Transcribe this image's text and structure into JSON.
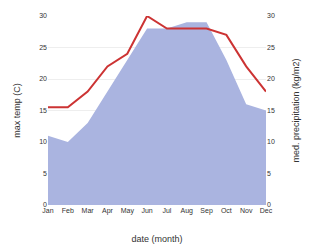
{
  "chart_data": {
    "type": "line",
    "xlabel": "date (month)",
    "ylabel": "max temp (C)",
    "y2label": "med. precipitation (kg/m2)",
    "categories": [
      "Jan",
      "Feb",
      "Mar",
      "Apr",
      "May",
      "Jun",
      "Jul",
      "Aug",
      "Sep",
      "Oct",
      "Nov",
      "Dec"
    ],
    "series": [
      {
        "type": "area",
        "axis": "y2",
        "color": "#aab4e0",
        "values": [
          11.0,
          10.0,
          13.0,
          18.0,
          23.0,
          28.0,
          28.0,
          29.0,
          29.0,
          23.0,
          16.0,
          15.0
        ]
      },
      {
        "type": "line",
        "color": "#cc3333",
        "values": [
          15.5,
          15.5,
          18.0,
          22.0,
          24.0,
          30.0,
          28.0,
          28.0,
          28.0,
          27.0,
          22.0,
          18.0
        ]
      }
    ],
    "ylim": [
      0,
      30
    ],
    "yticks": [
      0,
      5,
      10,
      15,
      20,
      25,
      30
    ],
    "y2lim": [
      0,
      30
    ],
    "y2ticks": [
      0,
      5,
      10,
      15,
      20,
      25,
      30
    ],
    "grid": true
  }
}
